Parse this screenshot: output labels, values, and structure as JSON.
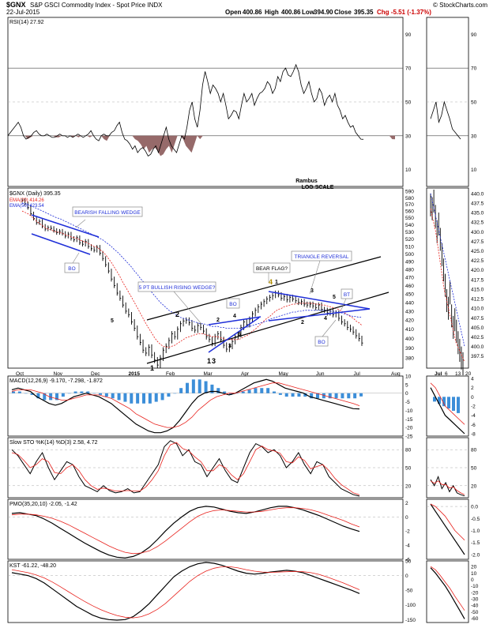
{
  "header": {
    "symbol": "$GNX",
    "title": "S&P GSCI Commodity Index - Spot Price INDX",
    "date": "22-Jul-2015",
    "open_label": "Open",
    "open": "400.86",
    "high_label": "High",
    "high": "400.86",
    "low_label": "Low",
    "low": "394.90",
    "close_label": "Close",
    "close": "395.35",
    "change": "Chg -5.51 (-1.37%)",
    "copyright": "© StockCharts.com"
  },
  "colors": {
    "price_bars": "#000000",
    "ema20": "#e8211c",
    "ema50": "#1c2bd6",
    "annotation_blue": "#1f2fd8",
    "macd_hist": "#3c8ed8",
    "rsi_fill": "#8b5a5a",
    "grid": "#aaaaaa"
  },
  "annotations": {
    "source": "Rambus",
    "scale": "LOG SCALE",
    "wedge_label": "BEARISH FALLING WEDGE",
    "bo1": "BO",
    "rising_wedge": "5 PT BULLISH RISING WEDGE?",
    "bo2": "BO",
    "bear_flag": "BEAR FLAG?",
    "triangle": "TRIANGLE REVERSAL",
    "bt": "BT",
    "bo3": "BO",
    "n1": "1",
    "n2": "2",
    "n3": "3",
    "n4": "4",
    "s": "5",
    "f2": "2",
    "f4": "4",
    "f1": "1",
    "f3": "3",
    "t1": "1",
    "t3": "3",
    "t5": "5",
    "t2": "2",
    "t4": "4",
    "w1": "1",
    "w3": "3",
    "w5": "5"
  },
  "chart_data": [
    {
      "type": "line",
      "title": "RSI(14) 27.92",
      "y_ticks": [
        10,
        30,
        50,
        70,
        90
      ],
      "ylim": [
        0,
        100
      ],
      "reference_levels": [
        30,
        50,
        70
      ],
      "side_y_ticks": [
        10,
        30,
        50,
        70,
        90
      ],
      "values": [
        30,
        32,
        34,
        36,
        38,
        35,
        30,
        28,
        29,
        30,
        32,
        33,
        31,
        30,
        30,
        31,
        30,
        29,
        29,
        30,
        31,
        30,
        30,
        29,
        30,
        29,
        30,
        31,
        30,
        29,
        30,
        31,
        33,
        30,
        28,
        27,
        30,
        31,
        30,
        30,
        32,
        33,
        36,
        38,
        32,
        28,
        27,
        25,
        22,
        24,
        20,
        22,
        23,
        21,
        18,
        19,
        22,
        24,
        20,
        25,
        30,
        35,
        28,
        24,
        22,
        20,
        25,
        30,
        28,
        35,
        45,
        50,
        40,
        35,
        45,
        60,
        68,
        62,
        55,
        60,
        58,
        55,
        50,
        55,
        48,
        40,
        42,
        45,
        44,
        40,
        48,
        55,
        50,
        52,
        55,
        48,
        52,
        55,
        56,
        58,
        62,
        60,
        55,
        58,
        65,
        62,
        68,
        70,
        66,
        65,
        68,
        72,
        68,
        60,
        55,
        58,
        62,
        55,
        50,
        52,
        58,
        55,
        48,
        52,
        54,
        50,
        55,
        48,
        45,
        40,
        42,
        38,
        35,
        36,
        32,
        30,
        28,
        27.92
      ]
    },
    {
      "type": "line",
      "title": "$GNX (Daily) 395.35",
      "legend": [
        "EMA(20) 414.26",
        "EMA(50) 423.54"
      ],
      "y_scale": "log",
      "ylim": [
        370,
        595
      ],
      "y_ticks": [
        380,
        390,
        400,
        410,
        420,
        430,
        440,
        450,
        460,
        470,
        480,
        490,
        500,
        510,
        520,
        530,
        540,
        550,
        560,
        570,
        580,
        590
      ],
      "side_y_ticks": [
        397.5,
        400.0,
        402.5,
        405.0,
        407.5,
        410.0,
        412.5,
        415.0,
        417.5,
        420.0,
        422.5,
        425.0,
        427.5,
        430.0,
        432.5,
        435.0,
        437.5,
        440.0
      ],
      "x_ticks": [
        "Oct",
        "Nov",
        "Dec",
        "2015",
        "Feb",
        "Mar",
        "Apr",
        "May",
        "Jun",
        "Jul",
        "Aug"
      ],
      "side_x_ticks": [
        "Jul",
        "6",
        "13",
        "20"
      ],
      "close": [
        576,
        571,
        565,
        556,
        549,
        543,
        545,
        538,
        534,
        536,
        535,
        532,
        529,
        531,
        528,
        524,
        527,
        521,
        519,
        522,
        515,
        513,
        517,
        510,
        507,
        505,
        509,
        501,
        494,
        486,
        478,
        468,
        460,
        451,
        445,
        437,
        430,
        426,
        418,
        411,
        402,
        396,
        388,
        385,
        391,
        383,
        378,
        373,
        380,
        388,
        392,
        398,
        405,
        402,
        410,
        416,
        419,
        420,
        417,
        411,
        409,
        414,
        412,
        408,
        402,
        399,
        395,
        402,
        405,
        399,
        393,
        389,
        392,
        397,
        402,
        404,
        412,
        418,
        415,
        421,
        427,
        431,
        435,
        438,
        441,
        444,
        446,
        448,
        451,
        449,
        445,
        447,
        443,
        446,
        444,
        442,
        440,
        441,
        438,
        437,
        438,
        436,
        434,
        437,
        432,
        431,
        428,
        430,
        426,
        428,
        422,
        418,
        416,
        412,
        410,
        407,
        403,
        400,
        395.35
      ],
      "ema20": [
        560,
        558,
        556,
        553,
        549,
        545,
        542,
        539,
        536,
        534,
        533,
        531,
        530,
        529,
        528,
        526,
        525,
        523,
        522,
        521,
        519,
        517,
        516,
        514,
        512,
        510,
        509,
        506,
        503,
        499,
        494,
        489,
        483,
        477,
        471,
        464,
        458,
        452,
        446,
        440,
        434,
        428,
        422,
        416,
        411,
        406,
        401,
        397,
        394,
        392,
        391,
        391,
        392,
        393,
        395,
        397,
        399,
        401,
        402,
        403,
        404,
        405,
        405,
        405,
        404,
        403,
        402,
        402,
        402,
        401,
        400,
        399,
        399,
        399,
        399,
        399,
        400,
        402,
        403,
        405,
        408,
        410,
        413,
        416,
        419,
        422,
        424,
        427,
        430,
        432,
        433,
        435,
        436,
        437,
        438,
        438,
        439,
        439,
        439,
        439,
        439,
        439,
        438,
        438,
        437,
        437,
        436,
        435,
        434,
        433,
        432,
        430,
        428,
        426,
        424,
        422,
        419,
        417,
        414.26
      ],
      "ema50": [
        572,
        571,
        570,
        568,
        566,
        564,
        562,
        560,
        558,
        556,
        554,
        552,
        550,
        549,
        547,
        545,
        543,
        541,
        539,
        537,
        535,
        533,
        531,
        529,
        527,
        525,
        523,
        521,
        519,
        516,
        513,
        510,
        506,
        503,
        499,
        495,
        491,
        487,
        483,
        478,
        474,
        469,
        465,
        460,
        456,
        452,
        448,
        444,
        440,
        437,
        434,
        431,
        429,
        427,
        425,
        423,
        422,
        421,
        420,
        419,
        418,
        417,
        416,
        416,
        415,
        414,
        413,
        413,
        413,
        412,
        412,
        411,
        411,
        411,
        411,
        411,
        411,
        412,
        412,
        413,
        414,
        415,
        416,
        417,
        418,
        419,
        421,
        422,
        423,
        424,
        425,
        426,
        427,
        428,
        429,
        429,
        430,
        430,
        431,
        431,
        431,
        431,
        431,
        431,
        431,
        431,
        431,
        430,
        430,
        429,
        429,
        428,
        427,
        426,
        425,
        424,
        424,
        423,
        423.54
      ]
    },
    {
      "type": "line",
      "title": "MACD(12,26,9) -9.170, -7.298, -1.872",
      "ylim": [
        -25,
        10
      ],
      "y_ticks": [
        -25,
        -20,
        -15,
        -10,
        -5,
        0,
        5,
        10
      ],
      "side_y_ticks": [
        -8,
        -6,
        -4,
        -2,
        0,
        2,
        4
      ],
      "macd": [
        2,
        3,
        2,
        1,
        -2,
        -4,
        -6,
        -7,
        -6,
        -4,
        -2,
        -1,
        0,
        -1,
        -2,
        -4,
        -6,
        -9,
        -12,
        -15,
        -18,
        -20,
        -22,
        -23,
        -23,
        -22,
        -20,
        -16,
        -11,
        -6,
        -2,
        0,
        1,
        1,
        0,
        -1,
        0,
        2,
        4,
        6,
        7,
        8,
        7,
        5,
        3,
        2,
        1,
        0,
        -2,
        -3,
        -4,
        -5,
        -6,
        -7,
        -8,
        -9,
        -9.17
      ],
      "signal": [
        1,
        2,
        2,
        2,
        1,
        0,
        -2,
        -3,
        -4,
        -4,
        -3,
        -2,
        -1,
        -1,
        -1,
        -2,
        -3,
        -5,
        -7,
        -9,
        -12,
        -14,
        -16,
        -18,
        -19,
        -20,
        -20,
        -19,
        -17,
        -14,
        -10,
        -7,
        -4,
        -2,
        -1,
        0,
        0,
        1,
        2,
        3,
        4,
        5,
        6,
        6,
        5,
        4,
        3,
        2,
        1,
        0,
        -1,
        -2,
        -3,
        -4,
        -5,
        -6,
        -7.298
      ],
      "histogram": [
        1,
        1,
        0,
        -1,
        -3,
        -4,
        -4,
        -4,
        -2,
        0,
        1,
        1,
        1,
        0,
        -1,
        -2,
        -3,
        -4,
        -5,
        -6,
        -6,
        -6,
        -6,
        -5,
        -4,
        -2,
        0,
        3,
        6,
        8,
        8,
        7,
        5,
        3,
        1,
        -1,
        0,
        1,
        2,
        3,
        3,
        3,
        1,
        -1,
        -2,
        -2,
        -2,
        -2,
        -3,
        -3,
        -3,
        -3,
        -3,
        -3,
        -3,
        -3,
        -1.872
      ]
    },
    {
      "type": "line",
      "title": "Slow STO %K(14) %D(3) 2.58, 4.72",
      "ylim": [
        0,
        100
      ],
      "y_ticks": [
        20,
        50,
        80
      ],
      "side_y_ticks": [
        20,
        50,
        80
      ],
      "k": [
        80,
        70,
        55,
        40,
        60,
        75,
        50,
        30,
        45,
        60,
        55,
        35,
        20,
        15,
        10,
        20,
        12,
        8,
        10,
        15,
        8,
        10,
        25,
        40,
        55,
        85,
        95,
        90,
        70,
        80,
        60,
        55,
        35,
        50,
        65,
        45,
        30,
        25,
        50,
        75,
        90,
        85,
        75,
        80,
        70,
        50,
        60,
        75,
        55,
        40,
        60,
        55,
        35,
        25,
        15,
        10,
        5,
        2.58
      ],
      "d": [
        75,
        72,
        62,
        50,
        55,
        65,
        60,
        42,
        40,
        50,
        55,
        45,
        30,
        20,
        14,
        16,
        14,
        11,
        11,
        12,
        11,
        11,
        18,
        30,
        45,
        70,
        88,
        92,
        82,
        78,
        68,
        60,
        45,
        45,
        55,
        50,
        38,
        30,
        40,
        60,
        80,
        86,
        80,
        78,
        74,
        60,
        58,
        68,
        62,
        48,
        52,
        55,
        45,
        32,
        22,
        15,
        8,
        4.72
      ]
    },
    {
      "type": "line",
      "title": "PMO(35,20,10) -2.05, -1.42",
      "ylim": [
        -6,
        2.5
      ],
      "y_ticks": [
        -6,
        -4,
        -2,
        0,
        2
      ],
      "side_y_ticks": [
        -2.0,
        -1.5,
        -1.0,
        -0.5,
        0.0
      ],
      "pmo": [
        0.5,
        0.6,
        0.4,
        0.2,
        -0.3,
        -0.9,
        -1.6,
        -2.3,
        -3.0,
        -3.7,
        -4.3,
        -4.9,
        -5.4,
        -5.7,
        -5.8,
        -5.6,
        -5.1,
        -4.3,
        -3.2,
        -2.0,
        -0.9,
        0.0,
        0.8,
        1.3,
        1.5,
        1.4,
        1.1,
        0.8,
        0.6,
        0.5,
        0.7,
        1.0,
        1.3,
        1.5,
        1.5,
        1.3,
        1.0,
        0.6,
        0.2,
        -0.3,
        -0.8,
        -1.3,
        -1.7,
        -2.05
      ],
      "signal": [
        0.3,
        0.4,
        0.4,
        0.3,
        0.1,
        -0.2,
        -0.6,
        -1.1,
        -1.7,
        -2.3,
        -2.9,
        -3.5,
        -4.1,
        -4.6,
        -5.0,
        -5.2,
        -5.1,
        -4.8,
        -4.2,
        -3.4,
        -2.5,
        -1.6,
        -0.7,
        0.1,
        0.6,
        0.9,
        1.0,
        0.9,
        0.8,
        0.7,
        0.7,
        0.8,
        1.0,
        1.2,
        1.3,
        1.3,
        1.2,
        1.0,
        0.7,
        0.3,
        -0.1,
        -0.5,
        -1.0,
        -1.42
      ]
    },
    {
      "type": "line",
      "title": "KST -61.22, -48.20",
      "ylim": [
        -160,
        50
      ],
      "y_ticks": [
        -150,
        -100,
        -50,
        0,
        50
      ],
      "side_y_ticks": [
        -60,
        -50,
        -40,
        -30,
        -20,
        -10,
        0,
        10,
        20
      ],
      "kst": [
        10,
        5,
        0,
        -10,
        -25,
        -45,
        -65,
        -85,
        -105,
        -120,
        -135,
        -145,
        -150,
        -152,
        -150,
        -140,
        -120,
        -95,
        -65,
        -35,
        -5,
        15,
        30,
        40,
        45,
        42,
        35,
        25,
        15,
        8,
        5,
        8,
        12,
        15,
        18,
        15,
        10,
        0,
        -10,
        -20,
        -30,
        -40,
        -50,
        -61.22
      ],
      "signal": [
        20,
        15,
        10,
        2,
        -8,
        -22,
        -38,
        -55,
        -72,
        -88,
        -103,
        -116,
        -127,
        -136,
        -142,
        -144,
        -140,
        -130,
        -115,
        -95,
        -70,
        -45,
        -20,
        0,
        15,
        25,
        30,
        30,
        26,
        20,
        15,
        12,
        11,
        12,
        13,
        14,
        13,
        10,
        4,
        -5,
        -15,
        -25,
        -37,
        -48.2
      ]
    }
  ]
}
